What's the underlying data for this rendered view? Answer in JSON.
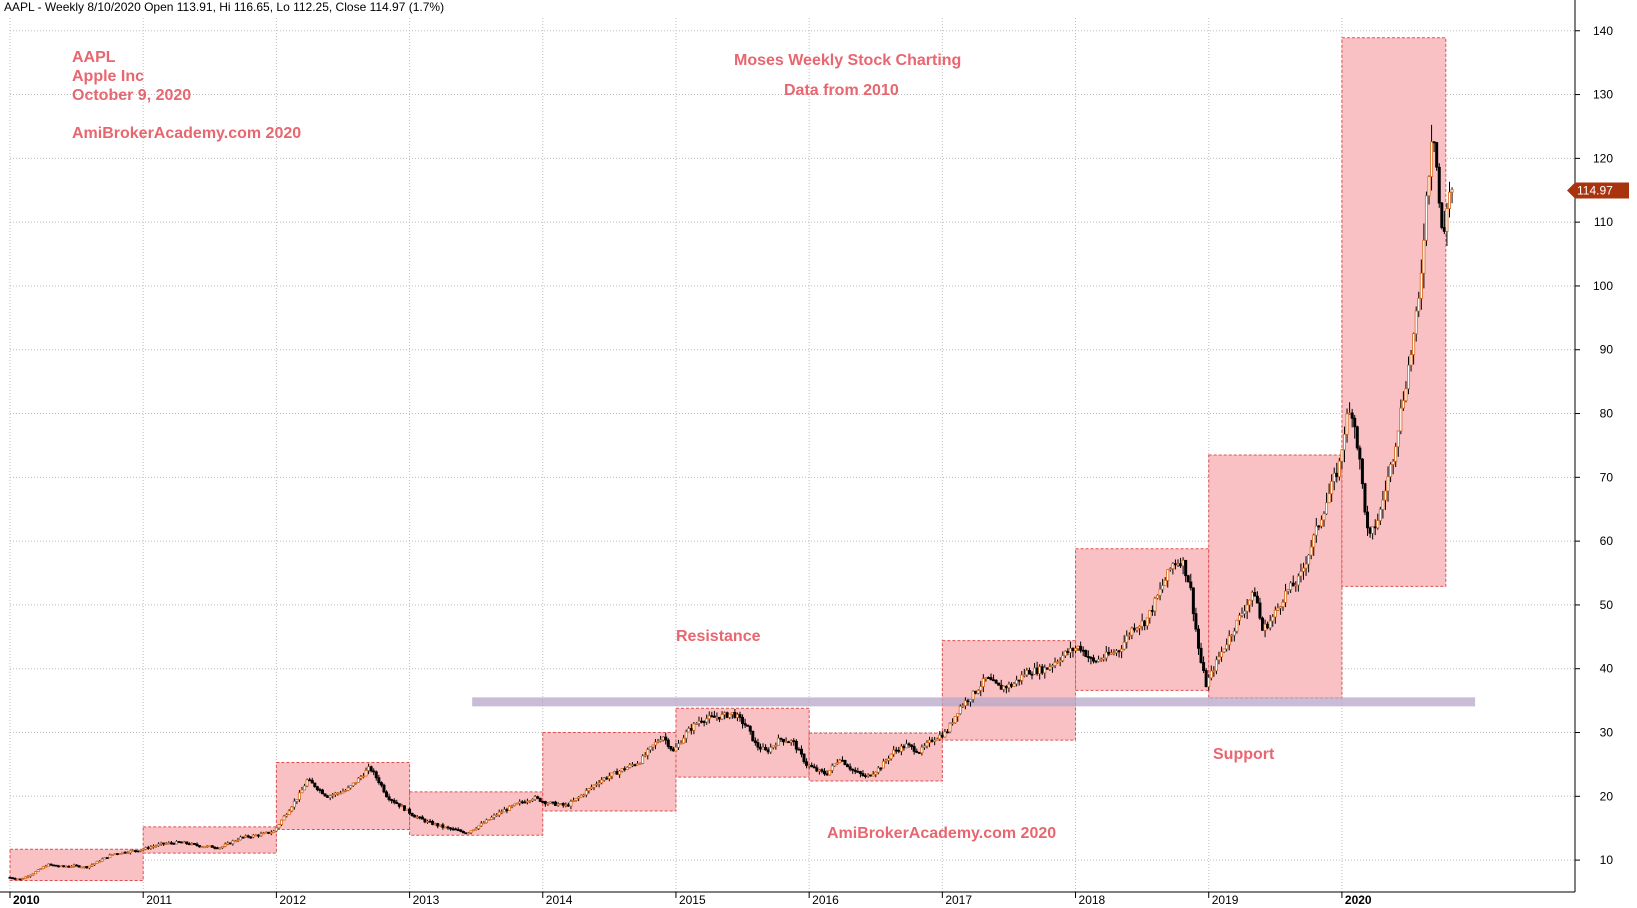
{
  "header": "AAPL - Weekly 8/10/2020 Open 113.91, Hi 116.65, Lo 112.25, Close 114.97 (1.7%)",
  "annotations": {
    "ticker": "AAPL",
    "company": "Apple Inc",
    "date": "October 9, 2020",
    "site_top": "AmiBrokerAcademy.com  2020",
    "title": "Moses Weekly Stock Charting",
    "subtitle": "Data from 2010",
    "resistance": "Resistance",
    "support": "Support",
    "site_bottom": "AmiBrokerAcademy.com  2020"
  },
  "chart_data": {
    "type": "candlestick",
    "symbol": "AAPL",
    "interval": "Weekly",
    "last_price_label": "114.97",
    "x_range": [
      2010.0,
      2021.75
    ],
    "ylim": [
      5,
      142
    ],
    "y_ticks": [
      10,
      20,
      30,
      40,
      50,
      60,
      70,
      80,
      90,
      100,
      110,
      120,
      130,
      140
    ],
    "x_ticks": [
      {
        "x": 2010,
        "label": "2010",
        "bold": true
      },
      {
        "x": 2011,
        "label": "2011",
        "bold": false
      },
      {
        "x": 2012,
        "label": "2012",
        "bold": false
      },
      {
        "x": 2013,
        "label": "2013",
        "bold": false
      },
      {
        "x": 2014,
        "label": "2014",
        "bold": false
      },
      {
        "x": 2015,
        "label": "2015",
        "bold": false
      },
      {
        "x": 2016,
        "label": "2016",
        "bold": false
      },
      {
        "x": 2017,
        "label": "2017",
        "bold": false
      },
      {
        "x": 2018,
        "label": "2018",
        "bold": false
      },
      {
        "x": 2019,
        "label": "2019",
        "bold": false
      },
      {
        "x": 2020,
        "label": "2020",
        "bold": true
      }
    ],
    "grid": true,
    "yearly_ranges": [
      {
        "year": 2010,
        "low": 6.8,
        "high": 11.7
      },
      {
        "year": 2011,
        "low": 11.1,
        "high": 15.2
      },
      {
        "year": 2012,
        "low": 14.8,
        "high": 25.3
      },
      {
        "year": 2013,
        "low": 13.9,
        "high": 20.7
      },
      {
        "year": 2014,
        "low": 17.7,
        "high": 30.0
      },
      {
        "year": 2015,
        "low": 23.0,
        "high": 33.8
      },
      {
        "year": 2016,
        "low": 22.4,
        "high": 29.9
      },
      {
        "year": 2017,
        "low": 28.8,
        "high": 44.4
      },
      {
        "year": 2018,
        "low": 36.6,
        "high": 58.8
      },
      {
        "year": 2019,
        "low": 35.4,
        "high": 73.5
      },
      {
        "year": 2020,
        "low": 52.9,
        "high": 138.9
      }
    ],
    "support_resistance_line": {
      "value": 34.8,
      "x_start": 2013.47,
      "x_end": 2021.0
    },
    "price_path": [
      [
        2010.0,
        7.3
      ],
      [
        2010.1,
        7.0
      ],
      [
        2010.2,
        8.0
      ],
      [
        2010.3,
        9.3
      ],
      [
        2010.4,
        9.0
      ],
      [
        2010.5,
        9.1
      ],
      [
        2010.6,
        8.9
      ],
      [
        2010.7,
        10.0
      ],
      [
        2010.8,
        11.0
      ],
      [
        2010.9,
        11.3
      ],
      [
        2011.0,
        11.6
      ],
      [
        2011.15,
        12.5
      ],
      [
        2011.3,
        12.8
      ],
      [
        2011.45,
        12.2
      ],
      [
        2011.6,
        12.0
      ],
      [
        2011.75,
        13.5
      ],
      [
        2011.9,
        14.0
      ],
      [
        2012.0,
        14.5
      ],
      [
        2012.1,
        17.5
      ],
      [
        2012.2,
        20.5
      ],
      [
        2012.25,
        22.5
      ],
      [
        2012.3,
        21.8
      ],
      [
        2012.4,
        20.0
      ],
      [
        2012.55,
        21.0
      ],
      [
        2012.65,
        23.0
      ],
      [
        2012.72,
        24.5
      ],
      [
        2012.8,
        22.0
      ],
      [
        2012.85,
        20.0
      ],
      [
        2012.95,
        18.5
      ],
      [
        2013.05,
        17.0
      ],
      [
        2013.15,
        16.0
      ],
      [
        2013.3,
        15.0
      ],
      [
        2013.45,
        14.3
      ],
      [
        2013.55,
        15.5
      ],
      [
        2013.7,
        17.5
      ],
      [
        2013.85,
        19.0
      ],
      [
        2013.95,
        19.8
      ],
      [
        2014.05,
        19.0
      ],
      [
        2014.2,
        18.5
      ],
      [
        2014.3,
        20.0
      ],
      [
        2014.45,
        22.5
      ],
      [
        2014.6,
        24.0
      ],
      [
        2014.75,
        25.5
      ],
      [
        2014.85,
        28.0
      ],
      [
        2014.92,
        29.5
      ],
      [
        2015.0,
        27.0
      ],
      [
        2015.1,
        30.0
      ],
      [
        2015.2,
        32.0
      ],
      [
        2015.35,
        32.5
      ],
      [
        2015.45,
        33.0
      ],
      [
        2015.55,
        31.0
      ],
      [
        2015.62,
        28.0
      ],
      [
        2015.7,
        27.0
      ],
      [
        2015.8,
        29.0
      ],
      [
        2015.9,
        28.5
      ],
      [
        2016.0,
        25.0
      ],
      [
        2016.08,
        24.0
      ],
      [
        2016.15,
        23.5
      ],
      [
        2016.25,
        26.0
      ],
      [
        2016.35,
        24.0
      ],
      [
        2016.45,
        23.0
      ],
      [
        2016.55,
        24.5
      ],
      [
        2016.65,
        27.0
      ],
      [
        2016.75,
        28.0
      ],
      [
        2016.85,
        27.0
      ],
      [
        2016.95,
        29.0
      ],
      [
        2017.05,
        30.0
      ],
      [
        2017.15,
        34.0
      ],
      [
        2017.25,
        36.0
      ],
      [
        2017.35,
        38.5
      ],
      [
        2017.45,
        37.0
      ],
      [
        2017.55,
        37.5
      ],
      [
        2017.65,
        39.5
      ],
      [
        2017.8,
        40.0
      ],
      [
        2017.95,
        42.5
      ],
      [
        2018.05,
        43.5
      ],
      [
        2018.15,
        41.0
      ],
      [
        2018.25,
        42.0
      ],
      [
        2018.35,
        43.0
      ],
      [
        2018.45,
        46.5
      ],
      [
        2018.55,
        47.5
      ],
      [
        2018.65,
        52.0
      ],
      [
        2018.75,
        56.5
      ],
      [
        2018.82,
        57.0
      ],
      [
        2018.88,
        53.0
      ],
      [
        2018.95,
        42.0
      ],
      [
        2019.0,
        37.5
      ],
      [
        2019.1,
        42.0
      ],
      [
        2019.2,
        46.0
      ],
      [
        2019.3,
        50.0
      ],
      [
        2019.37,
        52.0
      ],
      [
        2019.42,
        46.0
      ],
      [
        2019.5,
        48.0
      ],
      [
        2019.6,
        52.0
      ],
      [
        2019.7,
        54.0
      ],
      [
        2019.8,
        60.0
      ],
      [
        2019.9,
        66.0
      ],
      [
        2020.0,
        72.0
      ],
      [
        2020.05,
        79.0
      ],
      [
        2020.1,
        80.5
      ],
      [
        2020.15,
        73.0
      ],
      [
        2020.22,
        60.0
      ],
      [
        2020.3,
        64.0
      ],
      [
        2020.4,
        73.0
      ],
      [
        2020.5,
        85.0
      ],
      [
        2020.55,
        91.0
      ],
      [
        2020.6,
        98.0
      ],
      [
        2020.65,
        113.0
      ],
      [
        2020.68,
        120.0
      ],
      [
        2020.7,
        126.0
      ],
      [
        2020.72,
        122.0
      ],
      [
        2020.75,
        113.0
      ],
      [
        2020.78,
        106.0
      ],
      [
        2020.8,
        112.0
      ],
      [
        2020.83,
        115.0
      ]
    ]
  }
}
